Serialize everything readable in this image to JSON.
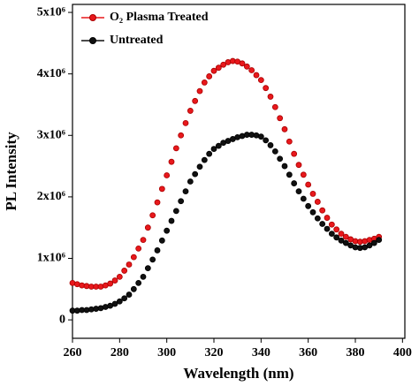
{
  "chart_data": {
    "type": "line",
    "x_label": "Wavelength (nm)",
    "y_label": "PL Intensity",
    "x": [
      260,
      262,
      264,
      266,
      268,
      270,
      272,
      274,
      276,
      278,
      280,
      282,
      284,
      286,
      288,
      290,
      292,
      294,
      296,
      298,
      300,
      302,
      304,
      306,
      308,
      310,
      312,
      314,
      316,
      318,
      320,
      322,
      324,
      326,
      328,
      330,
      332,
      334,
      336,
      338,
      340,
      342,
      344,
      346,
      348,
      350,
      352,
      354,
      356,
      358,
      360,
      362,
      364,
      366,
      368,
      370,
      372,
      374,
      376,
      378,
      380,
      382,
      384,
      386,
      388,
      390
    ],
    "series": [
      {
        "name": "O₂ Plasma Treated",
        "color": "#e8181c",
        "values": [
          600000,
          580000,
          560000,
          550000,
          540000,
          540000,
          540000,
          560000,
          590000,
          640000,
          700000,
          800000,
          900000,
          1020000,
          1160000,
          1300000,
          1500000,
          1700000,
          1910000,
          2130000,
          2350000,
          2570000,
          2790000,
          3000000,
          3200000,
          3400000,
          3560000,
          3720000,
          3860000,
          3960000,
          4050000,
          4100000,
          4150000,
          4190000,
          4210000,
          4200000,
          4170000,
          4120000,
          4060000,
          3980000,
          3900000,
          3770000,
          3630000,
          3460000,
          3280000,
          3100000,
          2900000,
          2700000,
          2520000,
          2360000,
          2200000,
          2050000,
          1920000,
          1780000,
          1660000,
          1550000,
          1470000,
          1400000,
          1350000,
          1310000,
          1280000,
          1270000,
          1280000,
          1300000,
          1320000,
          1350000
        ]
      },
      {
        "name": "Untreated",
        "color": "#111111",
        "values": [
          150000,
          150000,
          160000,
          160000,
          170000,
          180000,
          190000,
          210000,
          230000,
          260000,
          300000,
          350000,
          410000,
          500000,
          600000,
          700000,
          840000,
          980000,
          1130000,
          1290000,
          1450000,
          1610000,
          1770000,
          1930000,
          2090000,
          2250000,
          2370000,
          2490000,
          2600000,
          2700000,
          2780000,
          2830000,
          2880000,
          2910000,
          2940000,
          2970000,
          2990000,
          3010000,
          3010000,
          3000000,
          2980000,
          2920000,
          2840000,
          2740000,
          2620000,
          2500000,
          2360000,
          2220000,
          2090000,
          1970000,
          1850000,
          1750000,
          1650000,
          1560000,
          1480000,
          1400000,
          1340000,
          1290000,
          1250000,
          1210000,
          1180000,
          1170000,
          1180000,
          1210000,
          1250000,
          1300000
        ]
      }
    ],
    "xlim": [
      260,
      401
    ],
    "xticks": [
      260,
      280,
      300,
      320,
      340,
      360,
      380,
      400
    ],
    "ylim": [
      -300000,
      5130000
    ],
    "yticks": [
      0,
      {
        "value": 1000000,
        "label": "1x10⁶"
      },
      {
        "value": 2000000,
        "label": "2x10⁶"
      },
      {
        "value": 3000000,
        "label": "3x10⁶"
      },
      {
        "value": 4000000,
        "label": "4x10⁶"
      },
      {
        "value": 5000000,
        "label": "5x10⁶"
      }
    ],
    "grid": false,
    "legend": "upper left"
  }
}
